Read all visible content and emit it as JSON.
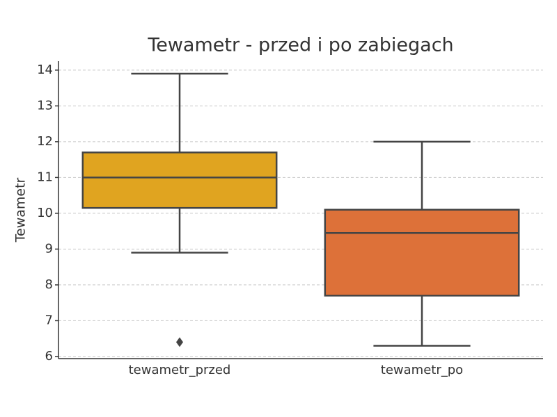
{
  "chart_data": {
    "type": "box",
    "title": "Tewametr - przed i po zabiegach",
    "y_label": "Tewametr",
    "categories": [
      "tewametr_przed",
      "tewametr_po"
    ],
    "boxes": [
      {
        "min": 8.9,
        "q1": 10.15,
        "median": 11.0,
        "q3": 11.7,
        "max": 13.9,
        "outliers": [
          6.4
        ],
        "color": "#e0a420"
      },
      {
        "min": 6.3,
        "q1": 7.7,
        "median": 9.45,
        "q3": 10.1,
        "max": 12.0,
        "outliers": [],
        "color": "#dd7139"
      }
    ],
    "ylim": [
      5.94,
      14.25
    ],
    "yticks": [
      6,
      7,
      8,
      9,
      10,
      11,
      12,
      13,
      14
    ],
    "grid": true
  }
}
